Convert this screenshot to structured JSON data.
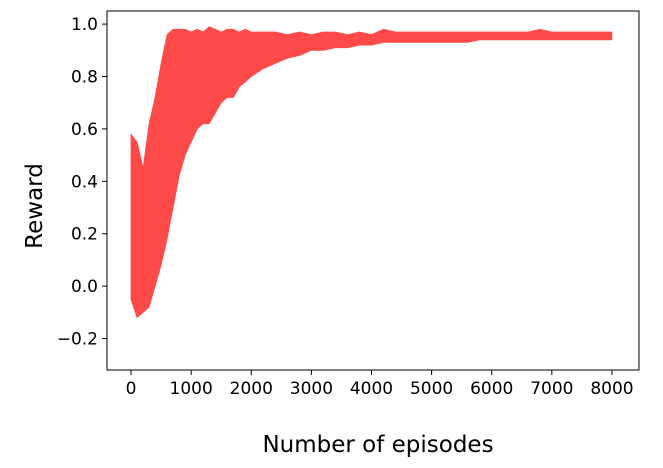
{
  "chart_data": {
    "type": "area",
    "title": "",
    "xlabel": "Number of episodes",
    "ylabel": "Reward",
    "xlim": [
      -400,
      8450
    ],
    "ylim": [
      -0.32,
      1.05
    ],
    "xticks": [
      0,
      1000,
      2000,
      3000,
      4000,
      5000,
      6000,
      7000,
      8000
    ],
    "yticks": [
      -0.2,
      0.0,
      0.2,
      0.4,
      0.6,
      0.8,
      1.0
    ],
    "xtick_labels": [
      "0",
      "1000",
      "2000",
      "3000",
      "4000",
      "5000",
      "6000",
      "7000",
      "8000"
    ],
    "ytick_labels": [
      "−0.2",
      "0.0",
      "0.2",
      "0.4",
      "0.6",
      "0.8",
      "1.0"
    ],
    "grid": false,
    "legend": "none",
    "series": [
      {
        "color": "#ff4a4a",
        "x": [
          0,
          100,
          200,
          300,
          400,
          500,
          600,
          700,
          800,
          900,
          1000,
          1100,
          1200,
          1300,
          1400,
          1500,
          1600,
          1700,
          1800,
          1900,
          2000,
          2200,
          2400,
          2600,
          2800,
          3000,
          3200,
          3400,
          3600,
          3800,
          4000,
          4200,
          4400,
          4600,
          4800,
          5000,
          5200,
          5400,
          5600,
          5800,
          6000,
          6200,
          6400,
          6600,
          6800,
          7000,
          7200,
          7400,
          7600,
          7800,
          8000
        ],
        "upper": [
          0.58,
          0.55,
          0.45,
          0.62,
          0.72,
          0.85,
          0.96,
          0.98,
          0.98,
          0.98,
          0.97,
          0.98,
          0.97,
          0.99,
          0.98,
          0.97,
          0.98,
          0.98,
          0.97,
          0.98,
          0.97,
          0.97,
          0.97,
          0.96,
          0.97,
          0.96,
          0.97,
          0.97,
          0.96,
          0.97,
          0.96,
          0.98,
          0.97,
          0.97,
          0.97,
          0.97,
          0.97,
          0.97,
          0.97,
          0.97,
          0.97,
          0.97,
          0.97,
          0.97,
          0.98,
          0.97,
          0.97,
          0.97,
          0.97,
          0.97,
          0.97
        ],
        "lower": [
          -0.05,
          -0.12,
          -0.1,
          -0.08,
          0.0,
          0.08,
          0.18,
          0.3,
          0.42,
          0.5,
          0.55,
          0.6,
          0.62,
          0.62,
          0.66,
          0.7,
          0.72,
          0.72,
          0.76,
          0.78,
          0.8,
          0.83,
          0.85,
          0.87,
          0.88,
          0.9,
          0.9,
          0.91,
          0.91,
          0.92,
          0.92,
          0.93,
          0.93,
          0.93,
          0.93,
          0.93,
          0.93,
          0.93,
          0.93,
          0.94,
          0.94,
          0.94,
          0.94,
          0.94,
          0.94,
          0.94,
          0.94,
          0.94,
          0.94,
          0.94,
          0.94
        ]
      }
    ]
  }
}
